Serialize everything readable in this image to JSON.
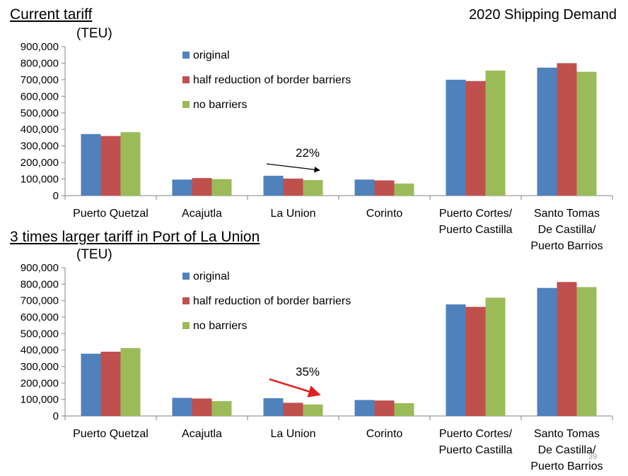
{
  "page_title": "2020 Shipping Demand",
  "page_number": "39",
  "colors": {
    "original": "#4f81bd",
    "half": "#c0504d",
    "none": "#9bbb59",
    "axis": "#868686",
    "arrow_top": "#000000",
    "arrow_bottom": "#e02020"
  },
  "chart_data": [
    {
      "type": "bar",
      "title": "Current tariff",
      "ylabel": "(TEU)",
      "ylim": [
        0,
        900000
      ],
      "yticks": [
        "0",
        "100,000",
        "200,000",
        "300,000",
        "400,000",
        "500,000",
        "600,000",
        "700,000",
        "800,000",
        "900,000"
      ],
      "categories": [
        "Puerto Quetzal",
        "Acajutla",
        "La Union",
        "Corinto",
        "Puerto Cortes/ Puerto Castilla",
        "Santo Tomas De Castilla/ Puerto Barrios"
      ],
      "category_lines": [
        [
          "Puerto Quetzal"
        ],
        [
          "Acajutla"
        ],
        [
          "La Union"
        ],
        [
          "Corinto"
        ],
        [
          "Puerto Cortes/",
          "Puerto Castilla"
        ],
        [
          "Santo Tomas",
          "De Castilla/",
          "Puerto Barrios"
        ]
      ],
      "series": [
        {
          "name": "original",
          "values": [
            372000,
            97000,
            120000,
            97000,
            700000,
            773000
          ]
        },
        {
          "name": "half reduction of border barriers",
          "values": [
            360000,
            106000,
            103000,
            92000,
            692000,
            800000
          ]
        },
        {
          "name": "no barriers",
          "values": [
            383000,
            100000,
            94000,
            73000,
            755000,
            748000
          ]
        }
      ],
      "legend": "top-center",
      "annotation": {
        "text": "22%",
        "category": "La Union"
      }
    },
    {
      "type": "bar",
      "title": "3 times larger tariff in Port of La Union",
      "ylabel": "(TEU)",
      "ylim": [
        0,
        900000
      ],
      "yticks": [
        "0",
        "100,000",
        "200,000",
        "300,000",
        "400,000",
        "500,000",
        "600,000",
        "700,000",
        "800,000",
        "900,000"
      ],
      "categories": [
        "Puerto Quetzal",
        "Acajutla",
        "La Union",
        "Corinto",
        "Puerto Cortes/ Puerto Castilla",
        "Santo Tomas De Castilla/ Puerto Barrios"
      ],
      "category_lines": [
        [
          "Puerto Quetzal"
        ],
        [
          "Acajutla"
        ],
        [
          "La Union"
        ],
        [
          "Corinto"
        ],
        [
          "Puerto Cortes/",
          "Puerto Castilla"
        ],
        [
          "Santo Tomas",
          "De Castilla/",
          "Puerto Barrios"
        ]
      ],
      "series": [
        {
          "name": "original",
          "values": [
            378000,
            110000,
            108000,
            97000,
            677000,
            777000
          ]
        },
        {
          "name": "half reduction of border barriers",
          "values": [
            390000,
            106000,
            80000,
            94000,
            662000,
            813000
          ]
        },
        {
          "name": "no barriers",
          "values": [
            412000,
            90000,
            70000,
            78000,
            718000,
            782000
          ]
        }
      ],
      "legend": "top-center",
      "annotation": {
        "text": "35%",
        "category": "La Union"
      }
    }
  ]
}
